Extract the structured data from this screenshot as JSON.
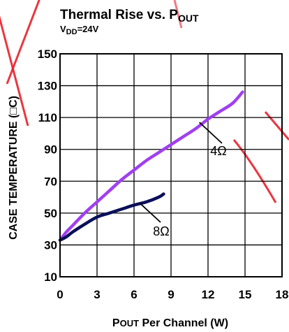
{
  "chart_data": {
    "type": "line",
    "title_main": "Thermal Rise vs. P",
    "title_sub": "OUT",
    "condition_main": "V",
    "condition_sub": "DD",
    "condition_rest": "=24V",
    "xlabel_main": "P",
    "xlabel_small": "OUT",
    "xlabel_rest": " Per Channel (W)",
    "ylabel": "CASE TEMPERATURE (□C)",
    "xlim": [
      0,
      18
    ],
    "ylim": [
      10,
      150
    ],
    "xticks": [
      0,
      3,
      6,
      9,
      12,
      15,
      18
    ],
    "yticks": [
      10,
      30,
      50,
      70,
      90,
      110,
      130,
      150
    ],
    "grid": true,
    "series": [
      {
        "name": "4Ω",
        "color": "#a040f0",
        "x": [
          0,
          0.5,
          1,
          2,
          3,
          4,
          5,
          6,
          7,
          8,
          9,
          10,
          11,
          12,
          13,
          14,
          14.8
        ],
        "y": [
          33,
          38,
          42,
          50,
          57,
          64,
          71,
          77,
          83,
          88,
          93,
          98,
          103,
          109,
          114,
          119,
          126
        ]
      },
      {
        "name": "8Ω",
        "color": "#0a0f5a",
        "x": [
          0,
          0.5,
          1,
          2,
          3,
          4,
          5,
          6,
          7,
          8,
          8.4
        ],
        "y": [
          33,
          35,
          38,
          43,
          47.5,
          50,
          52.5,
          55,
          57,
          60,
          62
        ]
      }
    ],
    "annotations": [
      {
        "series": "4Ω",
        "text": "4Ω"
      },
      {
        "series": "8Ω",
        "text": "8Ω"
      }
    ]
  },
  "colors": {
    "watermark": "#e8202a",
    "grid": "#000000",
    "axes": "#000000"
  }
}
